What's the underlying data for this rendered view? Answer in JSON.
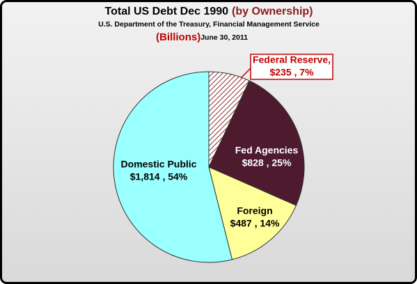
{
  "chart_data": {
    "type": "pie",
    "title": "Total US Debt Dec 1990",
    "title_suffix": "(by Ownership)",
    "subtitle": "U.S. Department of the Treasury, Financial Management Service",
    "unit_label": "(Billions)",
    "date": "June 30, 2011",
    "categories": [
      "Federal Reserve,",
      "Fed Agencies",
      "Foreign",
      "Domestic Public"
    ],
    "values": [
      235,
      828,
      487,
      1814
    ],
    "value_labels": [
      "$235 , 7%",
      "$828 , 25%",
      "$487 , 14%",
      "$1,814 , 54%"
    ],
    "colors": [
      "#ffffff",
      "#4d1a2e",
      "#ffff99",
      "#99ffff"
    ],
    "hatched": [
      true,
      false,
      false,
      false
    ]
  }
}
